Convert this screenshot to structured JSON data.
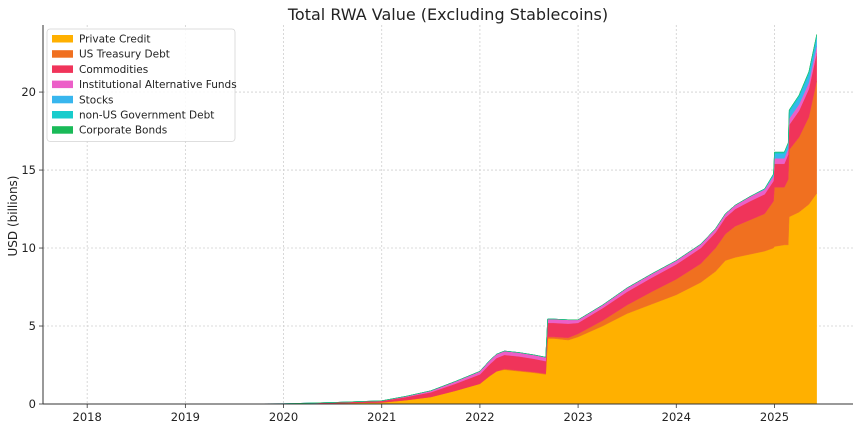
{
  "chart_data": {
    "type": "area",
    "stacked": true,
    "title": "Total RWA Value (Excluding Stablecoins)",
    "xlabel": "",
    "ylabel": "USD (billions)",
    "x_ticks": [
      "2018",
      "2019",
      "2020",
      "2021",
      "2022",
      "2023",
      "2024",
      "2025"
    ],
    "y_ticks": [
      "0",
      "5",
      "10",
      "15",
      "20"
    ],
    "xlim": [
      2017.55,
      2025.8
    ],
    "ylim": [
      0,
      24.3
    ],
    "grid": true,
    "legend_position": "top-left",
    "x": [
      2017.8,
      2019.0,
      2020.0,
      2020.5,
      2021.0,
      2021.25,
      2021.5,
      2021.75,
      2022.0,
      2022.1,
      2022.17,
      2022.25,
      2022.4,
      2022.55,
      2022.67,
      2022.69,
      2022.75,
      2022.9,
      2023.0,
      2023.25,
      2023.5,
      2023.75,
      2024.0,
      2024.25,
      2024.4,
      2024.5,
      2024.6,
      2024.75,
      2024.9,
      2024.99,
      2025.0,
      2025.1,
      2025.14,
      2025.15,
      2025.25,
      2025.35,
      2025.43
    ],
    "series": [
      {
        "name": "Private Credit",
        "color": "#ffb000",
        "values": [
          0,
          0,
          0,
          0.05,
          0.1,
          0.25,
          0.45,
          0.85,
          1.3,
          1.8,
          2.1,
          2.2,
          2.1,
          2.0,
          1.9,
          4.2,
          4.2,
          4.1,
          4.3,
          5.0,
          5.8,
          6.4,
          7.0,
          7.8,
          8.5,
          9.2,
          9.4,
          9.6,
          9.8,
          10.0,
          10.1,
          10.2,
          10.2,
          12.0,
          12.3,
          12.8,
          13.5
        ]
      },
      {
        "name": "US Treasury Debt",
        "color": "#f07020",
        "values": [
          0,
          0,
          0,
          0,
          0,
          0,
          0,
          0,
          0,
          0,
          0,
          0.05,
          0.05,
          0.05,
          0.05,
          0.1,
          0.1,
          0.15,
          0.2,
          0.35,
          0.55,
          0.8,
          1.0,
          1.2,
          1.5,
          1.7,
          2.0,
          2.2,
          2.4,
          3.0,
          3.8,
          3.7,
          4.2,
          4.3,
          4.8,
          5.6,
          7.2
        ]
      },
      {
        "name": "Commodities",
        "color": "#f0345a",
        "values": [
          0,
          0,
          0.02,
          0.05,
          0.1,
          0.2,
          0.3,
          0.45,
          0.6,
          0.75,
          0.85,
          0.9,
          0.9,
          0.85,
          0.8,
          0.9,
          0.9,
          0.9,
          0.7,
          0.8,
          0.85,
          0.9,
          0.95,
          1.0,
          1.0,
          1.05,
          1.1,
          1.2,
          1.25,
          1.3,
          1.5,
          1.5,
          1.6,
          1.6,
          1.7,
          1.8,
          1.8
        ]
      },
      {
        "name": "Institutional Alternative Funds",
        "color": "#ec5fc8",
        "values": [
          0,
          0,
          0,
          0,
          0.01,
          0.05,
          0.1,
          0.15,
          0.2,
          0.25,
          0.25,
          0.25,
          0.25,
          0.25,
          0.25,
          0.25,
          0.25,
          0.25,
          0.2,
          0.2,
          0.25,
          0.25,
          0.25,
          0.25,
          0.25,
          0.25,
          0.25,
          0.3,
          0.3,
          0.3,
          0.35,
          0.35,
          0.35,
          0.4,
          0.4,
          0.4,
          0.45
        ]
      },
      {
        "name": "Stocks",
        "color": "#38b6ee",
        "values": [
          0,
          0,
          0,
          0,
          0,
          0,
          0,
          0,
          0,
          0,
          0,
          0,
          0,
          0,
          0,
          0,
          0,
          0,
          0,
          0,
          0,
          0,
          0,
          0,
          0,
          0,
          0,
          0,
          0.05,
          0.1,
          0.3,
          0.3,
          0.3,
          0.4,
          0.45,
          0.5,
          0.5
        ]
      },
      {
        "name": "non-US Government Debt",
        "color": "#18cccc",
        "values": [
          0,
          0,
          0,
          0,
          0,
          0,
          0,
          0,
          0,
          0,
          0,
          0,
          0,
          0,
          0,
          0,
          0,
          0,
          0,
          0,
          0,
          0,
          0,
          0,
          0,
          0,
          0,
          0,
          0,
          0.05,
          0.1,
          0.1,
          0.1,
          0.15,
          0.15,
          0.2,
          0.2
        ]
      },
      {
        "name": "Corporate Bonds",
        "color": "#1aba58",
        "values": [
          0,
          0,
          0,
          0,
          0,
          0,
          0,
          0,
          0,
          0,
          0,
          0,
          0,
          0,
          0,
          0,
          0,
          0,
          0,
          0,
          0,
          0,
          0,
          0,
          0,
          0,
          0,
          0,
          0,
          0,
          0,
          0,
          0,
          0,
          0,
          0,
          0.05
        ]
      }
    ]
  }
}
